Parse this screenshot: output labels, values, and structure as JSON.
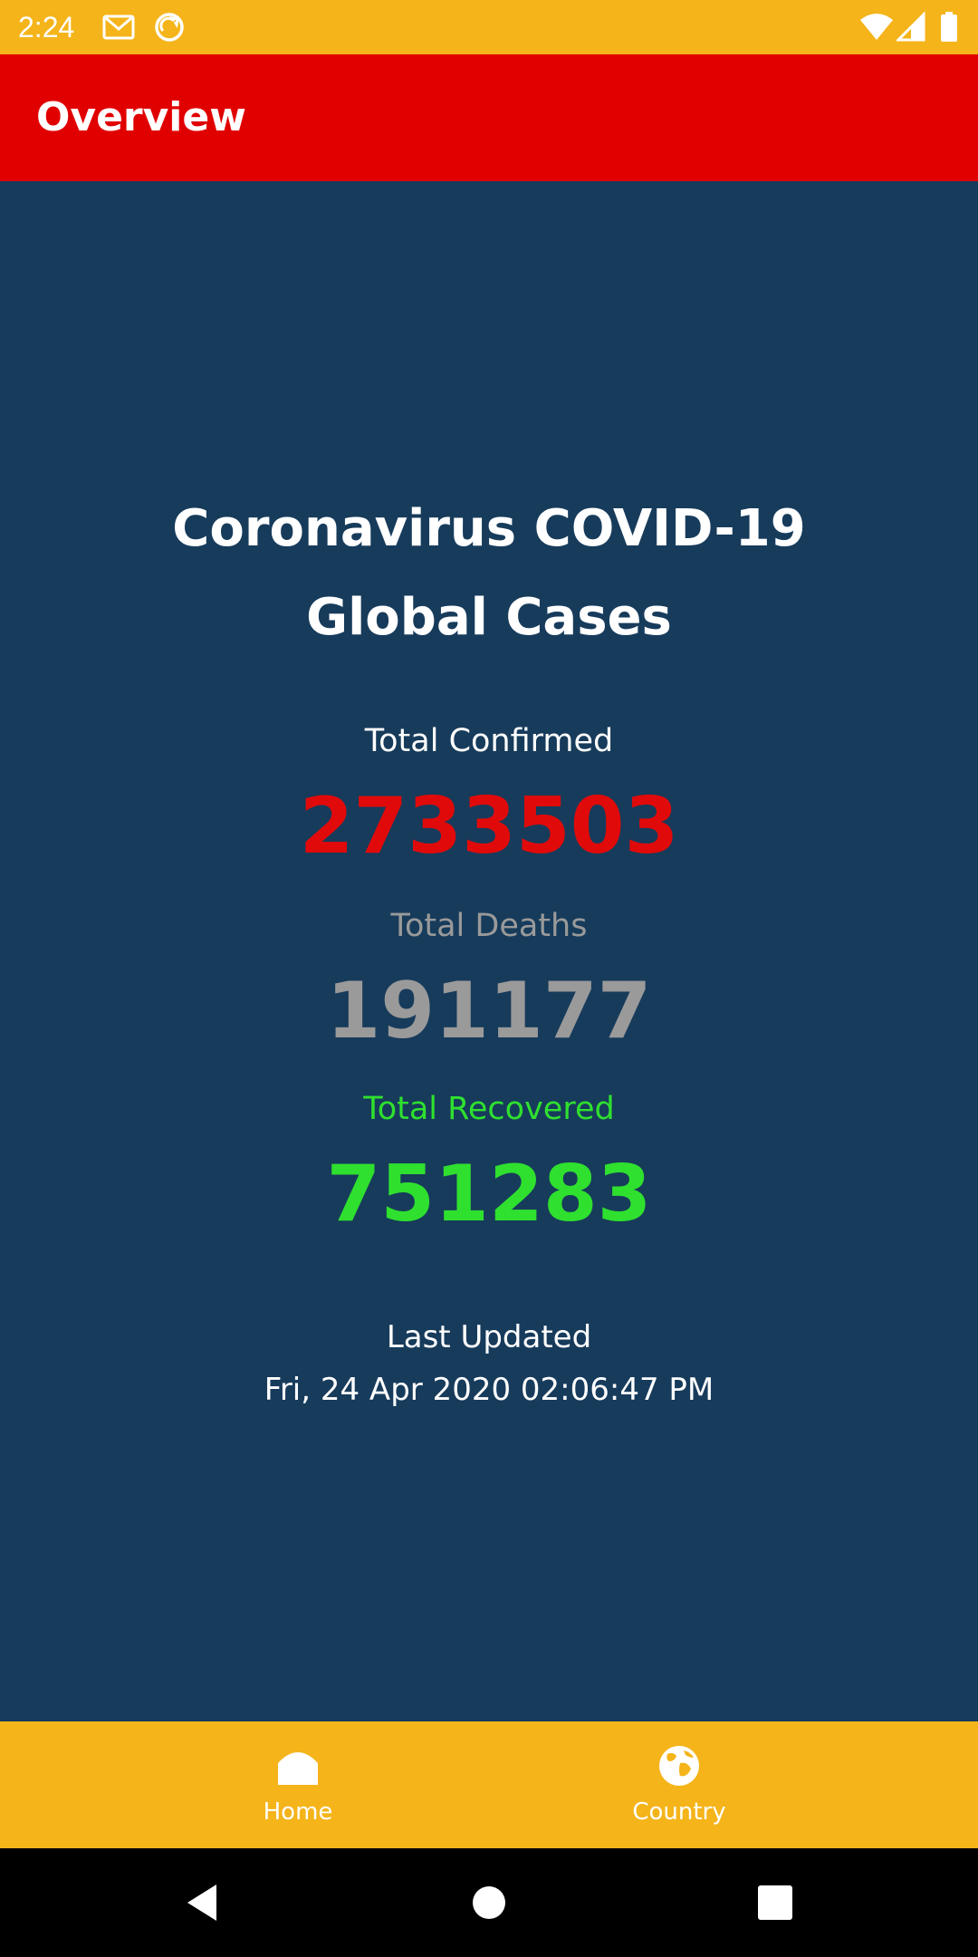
{
  "status_bar": {
    "time": "2:24",
    "icons": [
      "gmail-icon",
      "sync-icon",
      "wifi-icon",
      "signal-icon",
      "battery-icon"
    ]
  },
  "app_bar": {
    "title": "Overview"
  },
  "main": {
    "headline_line1": "Coronavirus COVID-19",
    "headline_line2": "Global Cases",
    "confirmed": {
      "label": "Total Confirmed",
      "value": "2733503"
    },
    "deaths": {
      "label": "Total Deaths",
      "value": "191177"
    },
    "recovered": {
      "label": "Total Recovered",
      "value": "751283"
    },
    "last_updated_label": "Last Updated",
    "last_updated_value": "Fri, 24 Apr 2020 02:06:47 PM"
  },
  "bottom_nav": {
    "items": [
      {
        "label": "Home",
        "icon": "home-icon"
      },
      {
        "label": "Country",
        "icon": "globe-icon"
      }
    ]
  },
  "colors": {
    "status_bar": "#f4b41a",
    "app_bar": "#e10000",
    "background": "#173b5b",
    "confirmed": "#e10a0a",
    "deaths": "#9a9a9a",
    "recovered": "#2fe02f",
    "bottom_nav": "#f4b41a"
  }
}
